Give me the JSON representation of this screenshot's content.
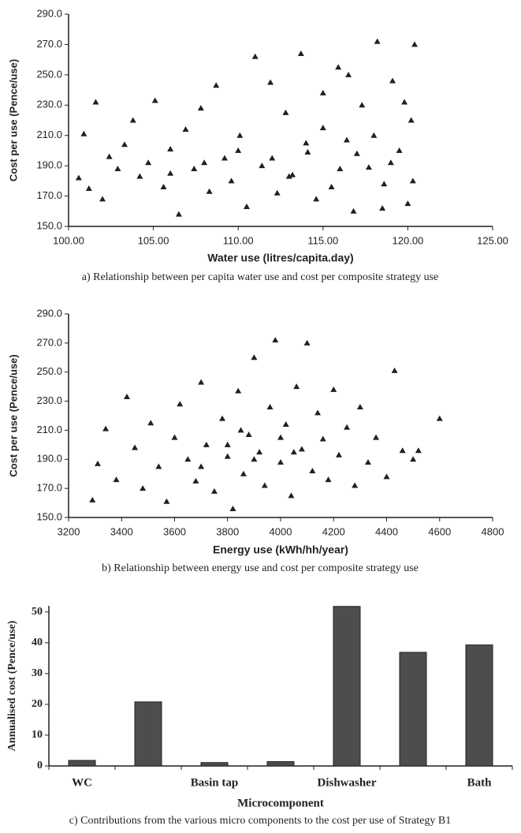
{
  "chart_data": [
    {
      "type": "scatter",
      "caption": "a) Relationship between per capita water use and cost per composite strategy use",
      "x_label": "Water use (litres/capita.day)",
      "y_label": "Cost per use (Pence/use)",
      "color": "#231f20",
      "xlim": [
        100,
        125
      ],
      "ylim": [
        150,
        290
      ],
      "xticks": [
        {
          "value": 100,
          "label": "100.00"
        },
        {
          "value": 105,
          "label": "105.00"
        },
        {
          "value": 110,
          "label": "110.00"
        },
        {
          "value": 115,
          "label": "115.00"
        },
        {
          "value": 120,
          "label": "120.00"
        },
        {
          "value": 125,
          "label": "125.00"
        }
      ],
      "yticks": [
        {
          "value": 150,
          "label": "150.0"
        },
        {
          "value": 170,
          "label": "170.0"
        },
        {
          "value": 190,
          "label": "190.0"
        },
        {
          "value": 210,
          "label": "210.0"
        },
        {
          "value": 230,
          "label": "230.0"
        },
        {
          "value": 250,
          "label": "250.0"
        },
        {
          "value": 270,
          "label": "270.0"
        },
        {
          "value": 290,
          "label": "290.0"
        }
      ],
      "x": [
        100.6,
        100.9,
        101.2,
        101.6,
        102.0,
        102.4,
        102.9,
        103.3,
        103.8,
        104.2,
        104.7,
        105.1,
        105.6,
        106.0,
        106.5,
        106.9,
        107.4,
        107.8,
        108.3,
        108.7,
        109.2,
        109.6,
        110.1,
        110.5,
        111.0,
        111.4,
        111.9,
        112.3,
        112.8,
        113.2,
        113.7,
        114.1,
        114.6,
        115.0,
        115.5,
        115.9,
        116.4,
        116.8,
        117.3,
        117.7,
        118.2,
        118.6,
        119.1,
        119.5,
        120.0,
        120.4,
        112.0,
        114.0,
        116.0,
        118.0,
        119.0,
        120.2,
        117.0,
        115.0,
        113.0,
        110.0,
        108.0,
        106.0,
        119.8,
        120.3,
        118.5,
        116.5
      ],
      "values": [
        182,
        211,
        175,
        232,
        168,
        196,
        188,
        204,
        220,
        183,
        192,
        233,
        176,
        201,
        158,
        214,
        188,
        228,
        173,
        243,
        195,
        180,
        210,
        163,
        262,
        190,
        245,
        172,
        225,
        184,
        264,
        199,
        168,
        238,
        176,
        255,
        207,
        160,
        230,
        189,
        272,
        178,
        246,
        200,
        165,
        270,
        195,
        205,
        188,
        210,
        192,
        220,
        198,
        215,
        183,
        200,
        192,
        185,
        232,
        180,
        162,
        250
      ]
    },
    {
      "type": "scatter",
      "caption": "b) Relationship between energy use and cost per composite strategy use",
      "x_label": "Energy use (kWh/hh/year)",
      "y_label": "Cost per use (Pence/use)",
      "color": "#231f20",
      "xlim": [
        3200,
        4800
      ],
      "ylim": [
        150,
        290
      ],
      "xticks": [
        3200,
        3400,
        3600,
        3800,
        4000,
        4200,
        4400,
        4600,
        4800
      ],
      "yticks": [
        {
          "value": 150,
          "label": "150.0"
        },
        {
          "value": 170,
          "label": "170.0"
        },
        {
          "value": 190,
          "label": "190.0"
        },
        {
          "value": 210,
          "label": "210.0"
        },
        {
          "value": 230,
          "label": "230.0"
        },
        {
          "value": 250,
          "label": "250.0"
        },
        {
          "value": 270,
          "label": "270.0"
        },
        {
          "value": 290,
          "label": "290.0"
        }
      ],
      "x": [
        3290,
        3310,
        3340,
        3380,
        3420,
        3450,
        3480,
        3510,
        3540,
        3570,
        3600,
        3620,
        3650,
        3680,
        3700,
        3720,
        3750,
        3780,
        3800,
        3820,
        3840,
        3860,
        3880,
        3900,
        3920,
        3940,
        3960,
        3980,
        4000,
        4020,
        4040,
        4060,
        4080,
        4100,
        4120,
        4140,
        4160,
        4180,
        4200,
        4220,
        4250,
        4280,
        4300,
        4330,
        4360,
        4400,
        4430,
        4460,
        4500,
        4520,
        4600,
        3800,
        3900,
        4000,
        3700,
        4050,
        3850
      ],
      "values": [
        162,
        187,
        211,
        176,
        233,
        198,
        170,
        215,
        185,
        161,
        205,
        228,
        190,
        175,
        243,
        200,
        168,
        218,
        192,
        156,
        237,
        180,
        207,
        260,
        195,
        172,
        226,
        272,
        188,
        214,
        165,
        240,
        197,
        270,
        182,
        222,
        204,
        176,
        238,
        193,
        212,
        172,
        226,
        188,
        205,
        178,
        251,
        196,
        190,
        196,
        218,
        200,
        190,
        205,
        185,
        195,
        210
      ]
    },
    {
      "type": "bar",
      "caption": "c) Contributions from the various micro components to the cost per use of Strategy B1",
      "x_label": "Microcomponent",
      "y_label": "Annualised cost (Pence/use)",
      "color": "#4d4d4f",
      "categories": [
        "WC",
        null,
        "Basin tap",
        null,
        "Dishwasher",
        null,
        "Bath"
      ],
      "values": [
        1.8,
        20.8,
        1.1,
        1.4,
        51.8,
        36.9,
        39.3
      ],
      "ylim": [
        0,
        52
      ],
      "yticks": [
        0,
        10,
        20,
        30,
        40,
        50
      ]
    }
  ]
}
